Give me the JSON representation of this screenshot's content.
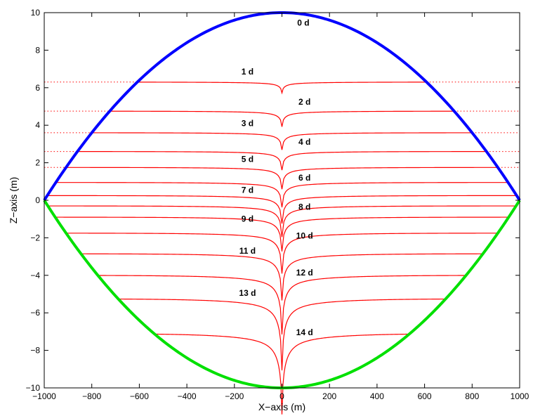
{
  "chart_data": {
    "type": "line",
    "title": "",
    "xlabel": "X−axis (m)",
    "ylabel": "Z−axis (m)",
    "xlim": [
      -1000,
      1000
    ],
    "ylim": [
      -10,
      10
    ],
    "xticks": [
      -1000,
      -800,
      -600,
      -400,
      -200,
      0,
      200,
      400,
      600,
      800,
      1000
    ],
    "yticks": [
      -10,
      -8,
      -6,
      -4,
      -2,
      0,
      2,
      4,
      6,
      8,
      10
    ],
    "grid": false,
    "boundaries": [
      {
        "name": "upper",
        "color": "#0000ff",
        "shape": "z = 10*(1 - (x/1000)^2)",
        "z_at_center": 10
      },
      {
        "name": "lower",
        "color": "#00e000",
        "shape": "z = -10*(1 - (x/1000)^2)",
        "z_at_center": -10
      }
    ],
    "curve_color": "#ff0000",
    "curves": [
      {
        "label": "0 d",
        "level": 10,
        "dip": 0,
        "edge_x": 0
      },
      {
        "label": "1 d",
        "level": 6.3,
        "dip": 0.35,
        "edge_x": 608
      },
      {
        "label": "2 d",
        "level": 4.75,
        "dip": 0.5,
        "edge_x": 724
      },
      {
        "label": "3 d",
        "level": 3.6,
        "dip": 0.55,
        "edge_x": 800
      },
      {
        "label": "4 d",
        "level": 2.6,
        "dip": 0.6,
        "edge_x": 860
      },
      {
        "label": "5 d",
        "level": 1.75,
        "dip": 0.7,
        "edge_x": 910
      },
      {
        "label": "6 d",
        "level": 0.95,
        "dip": 0.8,
        "edge_x": 952
      },
      {
        "label": "7 d",
        "level": 0.25,
        "dip": 0.9,
        "edge_x": 988
      },
      {
        "label": "8 d",
        "level": -0.3,
        "dip": 1.0,
        "edge_x": 985
      },
      {
        "label": "9 d",
        "level": -0.9,
        "dip": 1.1,
        "edge_x": 955
      },
      {
        "label": "10 d",
        "level": -1.75,
        "dip": 1.3,
        "edge_x": 910
      },
      {
        "label": "11 d",
        "level": -2.85,
        "dip": 1.5,
        "edge_x": 846
      },
      {
        "label": "12 d",
        "level": -4.0,
        "dip": 1.9,
        "edge_x": 775
      },
      {
        "label": "13 d",
        "level": -5.25,
        "dip": 2.3,
        "edge_x": 690
      },
      {
        "label": "14 d",
        "level": -7.1,
        "dip": 2.6,
        "edge_x": 540
      }
    ],
    "label_positions": [
      {
        "label": "0 d",
        "x": 90,
        "z": 9.3
      },
      {
        "label": "1 d",
        "x": -145,
        "z": 6.7
      },
      {
        "label": "2 d",
        "x": 95,
        "z": 5.1
      },
      {
        "label": "3 d",
        "x": -145,
        "z": 3.95
      },
      {
        "label": "4 d",
        "x": 95,
        "z": 2.95
      },
      {
        "label": "5 d",
        "x": -145,
        "z": 2.05
      },
      {
        "label": "6 d",
        "x": 95,
        "z": 1.05
      },
      {
        "label": "7 d",
        "x": -145,
        "z": 0.4
      },
      {
        "label": "8 d",
        "x": 95,
        "z": -0.5
      },
      {
        "label": "9 d",
        "x": -145,
        "z": -1.15
      },
      {
        "label": "10 d",
        "x": 95,
        "z": -2.05
      },
      {
        "label": "11 d",
        "x": -145,
        "z": -2.85
      },
      {
        "label": "12 d",
        "x": 95,
        "z": -4.0
      },
      {
        "label": "13 d",
        "x": -145,
        "z": -5.1
      },
      {
        "label": "14 d",
        "x": 95,
        "z": -7.2
      }
    ]
  }
}
